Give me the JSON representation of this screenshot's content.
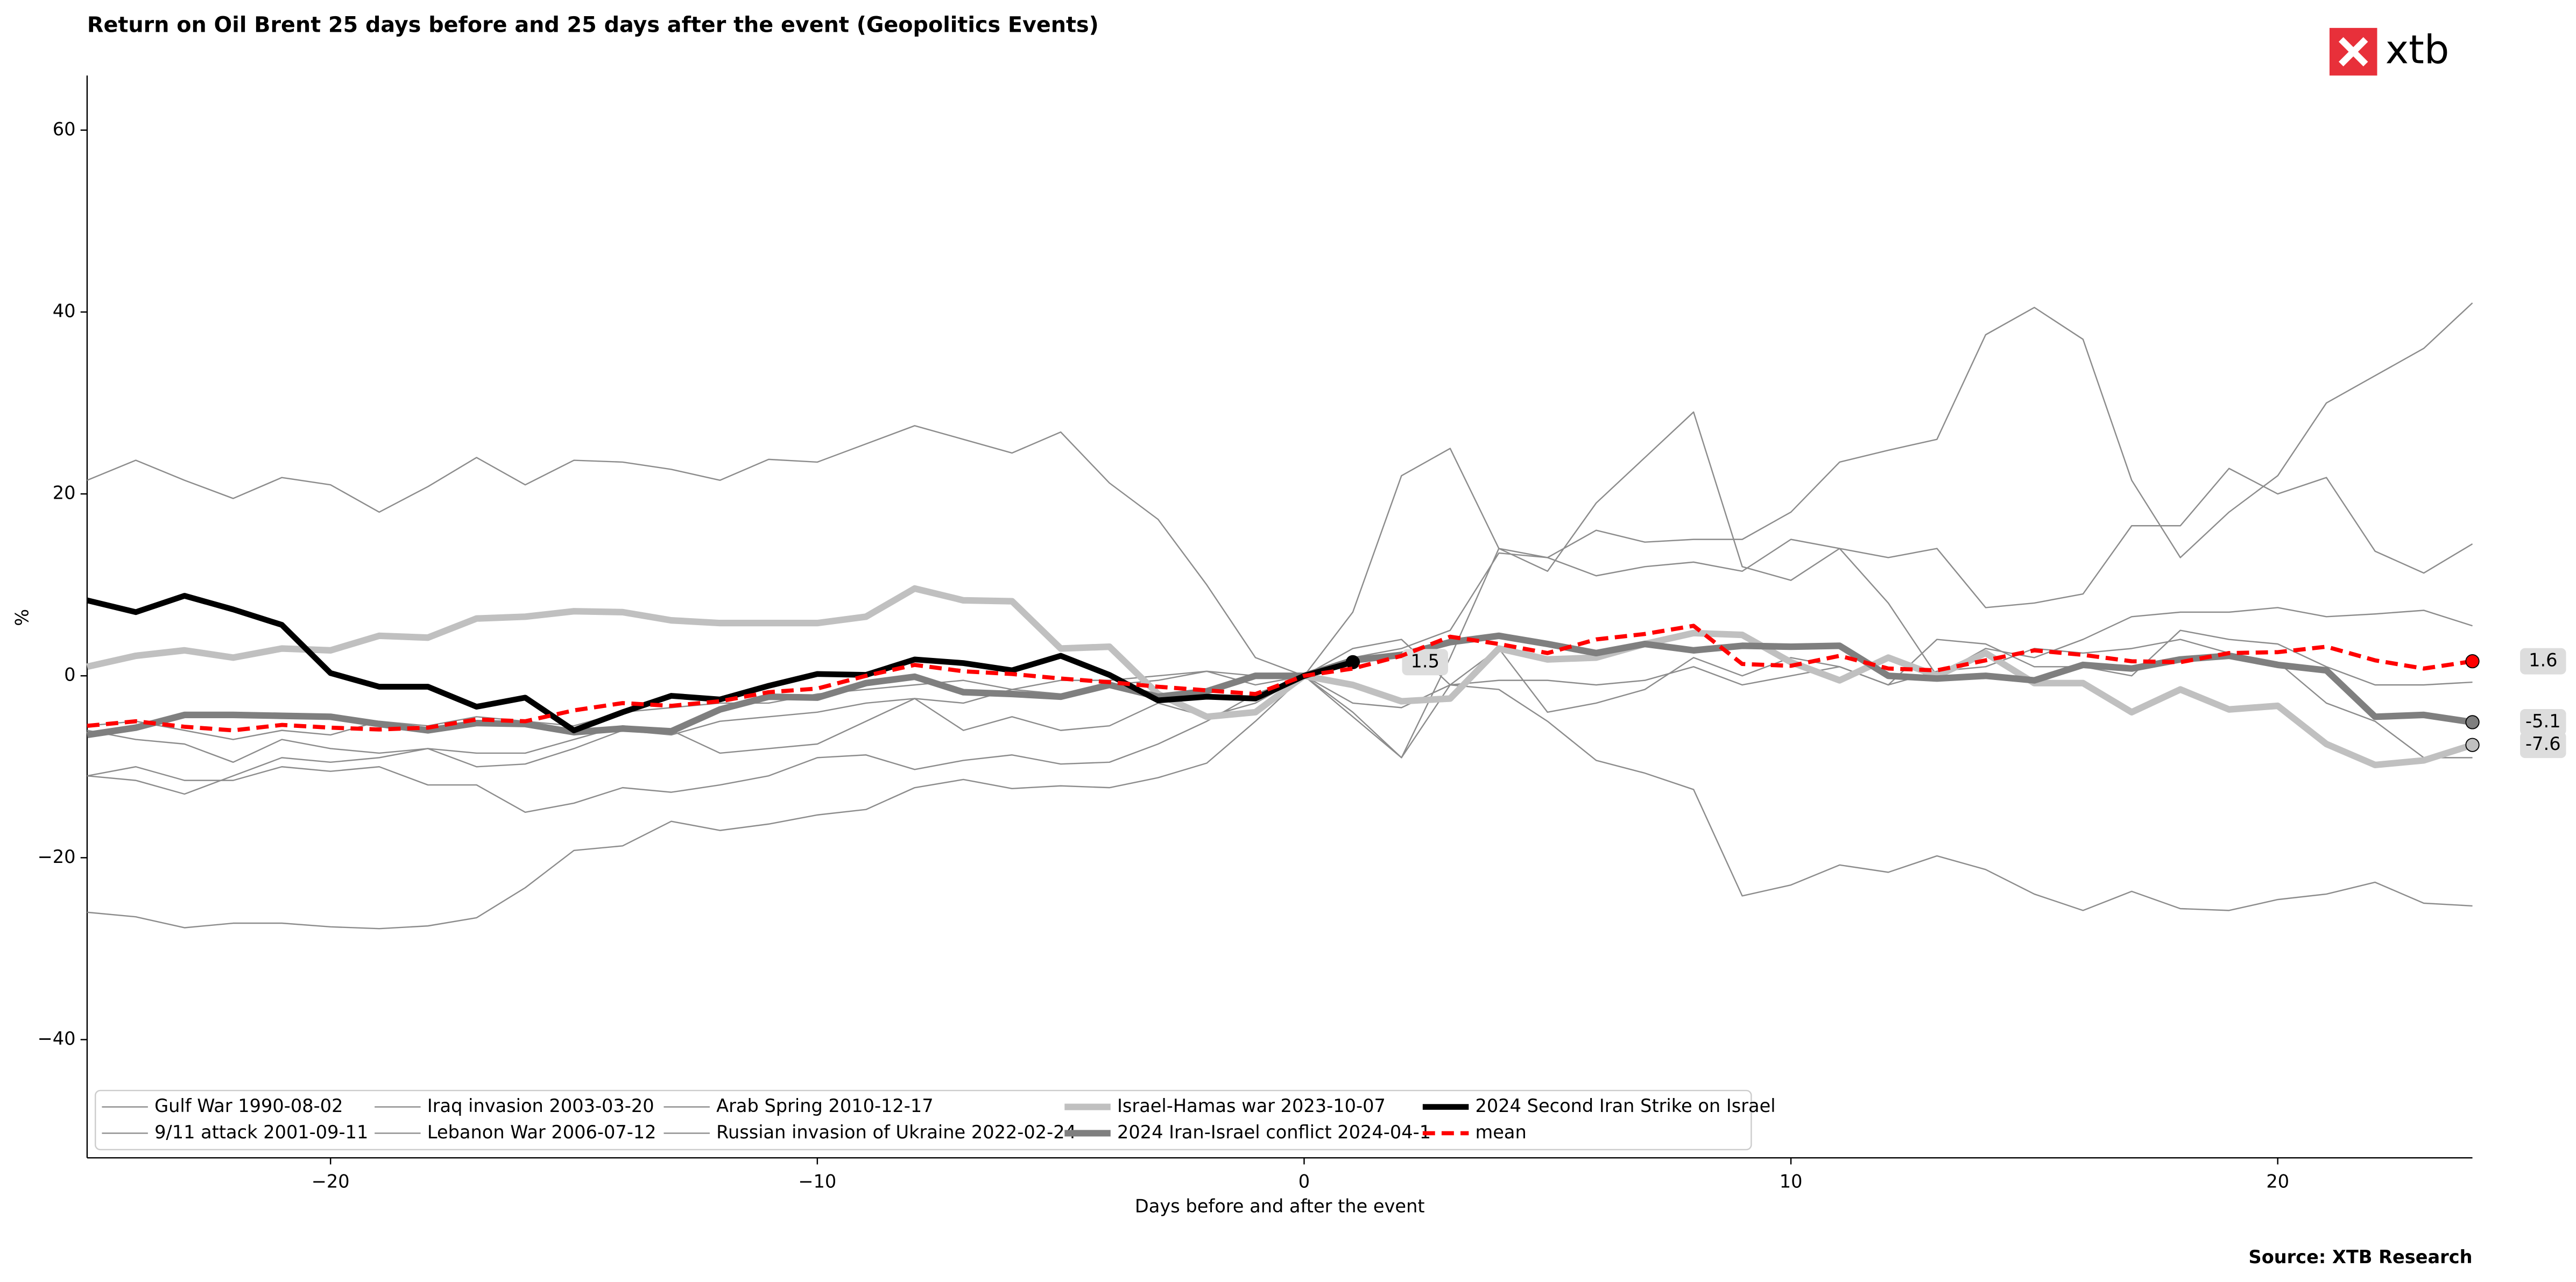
{
  "chart_data": {
    "type": "line",
    "title": "Return on Oil Brent 25 days before and 25 days after the event (Geopolitics Events)",
    "xlabel": "Days before and after the event",
    "ylabel": "%",
    "source": "Source: XTB Research",
    "logo_text": "xtb",
    "xlim": [
      -25,
      24
    ],
    "ylim": [
      -53,
      66
    ],
    "xticks": [
      {
        "value": -20,
        "label": "−20"
      },
      {
        "value": -10,
        "label": "−10"
      },
      0,
      10,
      20
    ],
    "yticks": [
      {
        "value": -40,
        "label": "−40"
      },
      {
        "value": -20,
        "label": "−20"
      },
      0,
      20,
      40,
      60
    ],
    "grid": false,
    "legend": "lower left",
    "x": [
      -25,
      -24,
      -23,
      -22,
      -21,
      -20,
      -19,
      -18,
      -17,
      -16,
      -15,
      -14,
      -13,
      -12,
      -11,
      -10,
      -9,
      -8,
      -7,
      -6,
      -5,
      -4,
      -3,
      -2,
      -1,
      0,
      1,
      2,
      3,
      4,
      5,
      6,
      7,
      8,
      9,
      10,
      11,
      12,
      13,
      14,
      15,
      16,
      17,
      18,
      19,
      20,
      21,
      22,
      23,
      24
    ],
    "series": [
      {
        "name": "Gulf War 1990-08-02",
        "color": "#8c8c8c",
        "linewidth": 0.8,
        "linestyle": "solid",
        "values": [
          -11,
          -10,
          -11.5,
          -11.5,
          -10,
          -10.5,
          -10,
          -12,
          -12,
          -15,
          -14,
          -12.3,
          -12.8,
          -12,
          -11,
          -9,
          -8.7,
          -10.3,
          -9.3,
          -8.7,
          -9.7,
          -9.5,
          -7.5,
          -5,
          -2,
          0,
          -4,
          -9,
          2,
          14,
          13,
          16,
          14.7,
          15,
          15,
          18,
          23.5,
          24.8,
          26,
          37.5,
          40.5,
          37,
          21.5,
          13,
          18,
          22,
          30,
          33,
          36,
          41
        ]
      },
      {
        "name": "9/11 attack 2001-09-11",
        "color": "#8c8c8c",
        "linewidth": 0.8,
        "linestyle": "solid",
        "values": [
          -26,
          -26.5,
          -27.7,
          -27.2,
          -27.2,
          -27.6,
          -27.8,
          -27.5,
          -26.6,
          -23.3,
          -19.2,
          -18.7,
          -16,
          -17,
          -16.3,
          -15.3,
          -14.7,
          -12.3,
          -11.4,
          -12.4,
          -12.1,
          -12.3,
          -11.2,
          -9.6,
          -5,
          0,
          -3,
          -3.5,
          -1,
          -1.5,
          -5,
          -9.3,
          -10.7,
          -12.5,
          -24.2,
          -23,
          -20.8,
          -21.6,
          -19.8,
          -21.3,
          -24,
          -25.8,
          -23.7,
          -25.6,
          -25.8,
          -24.6,
          -24,
          -22.7,
          -25,
          -25.3
        ]
      },
      {
        "name": "Iraq invasion 2003-03-20",
        "color": "#8c8c8c",
        "linewidth": 0.8,
        "linestyle": "solid",
        "values": [
          21.5,
          23.7,
          21.5,
          19.5,
          21.8,
          21,
          18,
          20.8,
          24,
          21,
          23.7,
          23.5,
          22.7,
          21.5,
          23.8,
          23.5,
          25.5,
          27.5,
          26,
          24.5,
          26.8,
          21.2,
          17.2,
          10,
          2,
          0,
          7,
          22,
          25,
          14,
          11.5,
          19,
          24,
          29,
          12,
          10.5,
          14,
          8,
          0,
          3,
          2,
          4,
          6.5,
          7,
          7,
          7.5,
          6.5,
          6.8,
          7.2,
          5.5
        ]
      },
      {
        "name": "Lebanon War 2006-07-12",
        "color": "#8c8c8c",
        "linewidth": 0.8,
        "linestyle": "solid",
        "values": [
          -6,
          -7,
          -7.5,
          -9.5,
          -7,
          -8,
          -8.5,
          -8,
          -10,
          -9.7,
          -8,
          -6,
          -6.5,
          -5,
          -4.5,
          -4,
          -3,
          -2.5,
          -3,
          -1.5,
          -2,
          -1,
          -0.5,
          0.5,
          0,
          0,
          2,
          3,
          5,
          13.5,
          13,
          11,
          12,
          12.5,
          11.5,
          15,
          14,
          13,
          14,
          7.5,
          8,
          9,
          16.5,
          16.5,
          22.8,
          20,
          21.8,
          13.7,
          11.3,
          14.5
        ]
      },
      {
        "name": "Arab Spring 2010-12-17",
        "color": "#8c8c8c",
        "linewidth": 0.8,
        "linestyle": "solid",
        "values": [
          -5.5,
          -5,
          -6,
          -7,
          -6,
          -6.5,
          -5,
          -5.5,
          -4.5,
          -5,
          -5.5,
          -4,
          -3.5,
          -3,
          -3,
          -2,
          -1.5,
          -1,
          -0.5,
          -1.5,
          -0.5,
          -0.5,
          0,
          0.5,
          -1,
          0,
          3,
          4,
          -1,
          -0.5,
          -0.5,
          -1,
          -0.5,
          1,
          -1,
          0,
          1,
          -1,
          4,
          3.5,
          1,
          1,
          0,
          5,
          4,
          3.5,
          1,
          -1,
          -1,
          -0.7
        ]
      },
      {
        "name": "Russian invasion of Ukraine 2022-02-24",
        "color": "#8c8c8c",
        "linewidth": 0.8,
        "linestyle": "solid",
        "values": [
          -11,
          -11.5,
          -13,
          -11,
          -9,
          -9.5,
          -9,
          -8,
          -8.5,
          -8.5,
          -7,
          -5.5,
          -6,
          -8.5,
          -8,
          -7.5,
          -5,
          -2.5,
          -6,
          -4.5,
          -6,
          -5.5,
          -3,
          -4.5,
          -3,
          0,
          -4.5,
          -9,
          -1,
          3,
          -4,
          -3,
          -1.5,
          2,
          0,
          2,
          1,
          -1,
          0.5,
          1,
          3,
          2.5,
          3,
          4,
          2.5,
          1.5,
          -3,
          -5,
          -9,
          -9
        ]
      },
      {
        "name": "Israel-Hamas war 2023-10-07",
        "color": "#c0c0c0",
        "linewidth": 4,
        "linestyle": "solid",
        "label_last": true,
        "values": [
          1,
          2.2,
          2.8,
          2,
          3,
          2.8,
          4.4,
          4.2,
          6.3,
          6.5,
          7.1,
          7,
          6.1,
          5.8,
          5.8,
          5.8,
          6.5,
          9.6,
          8.3,
          8.2,
          3,
          3.2,
          -2,
          -4.5,
          -4,
          0,
          -1,
          -2.8,
          -2.5,
          3,
          1.8,
          2,
          3.5,
          4.7,
          4.5,
          1.5,
          -0.5,
          2,
          0,
          2.5,
          -0.8,
          -0.8,
          -4,
          -1.5,
          -3.7,
          -3.3,
          -7.5,
          -9.8,
          -9.3,
          -7.6
        ]
      },
      {
        "name": "2024 Iran-Israel conflict 2024-04-1",
        "color": "#7f7f7f",
        "linewidth": 4,
        "linestyle": "solid",
        "label_last": true,
        "values": [
          -6.5,
          -5.7,
          -4.3,
          -4.3,
          -4.4,
          -4.5,
          -5.3,
          -6,
          -5.2,
          -5.3,
          -6.2,
          -5.8,
          -6.1,
          -3.7,
          -2.3,
          -2.4,
          -0.8,
          -0.1,
          -1.8,
          -2,
          -2.3,
          -1,
          -2.3,
          -1.7,
          0,
          0,
          1.7,
          2.3,
          3.7,
          4.4,
          3.5,
          2.5,
          3.5,
          2.8,
          3.3,
          3.2,
          3.3,
          0,
          -0.3,
          0,
          -0.5,
          1.2,
          0.8,
          1.8,
          2.2,
          1.2,
          0.6,
          -4.5,
          -4.3,
          -5.1
        ]
      },
      {
        "name": "2024 Second Iran Strike on Israel",
        "color": "#000000",
        "linewidth": 3.5,
        "linestyle": "solid",
        "label_last": true,
        "values": [
          8.3,
          7,
          8.8,
          7.3,
          5.6,
          0.3,
          -1.2,
          -1.2,
          -3.4,
          -2.4,
          -6,
          -4,
          -2.2,
          -2.6,
          -1.1,
          0.2,
          0.1,
          1.8,
          1.4,
          0.6,
          2.2,
          0.1,
          -2.7,
          -2.3,
          -2.5,
          0,
          1.5,
          null,
          null,
          null,
          null,
          null,
          null,
          null,
          null,
          null,
          null,
          null,
          null,
          null,
          null,
          null,
          null,
          null,
          null,
          null,
          null,
          null,
          null,
          null
        ]
      },
      {
        "name": "mean",
        "color": "#ff0000",
        "linewidth": 2.5,
        "linestyle": "dashed",
        "label_last": true,
        "values": [
          -5.5,
          -5,
          -5.6,
          -6,
          -5.4,
          -5.7,
          -5.9,
          -5.7,
          -4.8,
          -5,
          -3.8,
          -3,
          -3.3,
          -2.8,
          -1.8,
          -1.4,
          0,
          1.2,
          0.5,
          0.2,
          -0.3,
          -0.7,
          -1.2,
          -1.6,
          -2,
          0,
          0.8,
          2.2,
          4.3,
          3.5,
          2.5,
          4,
          4.6,
          5.5,
          1.3,
          1.1,
          2.2,
          0.8,
          0.6,
          1.7,
          2.8,
          2.3,
          1.6,
          1.5,
          2.5,
          2.6,
          3.2,
          1.7,
          0.8,
          1.6
        ]
      }
    ]
  }
}
